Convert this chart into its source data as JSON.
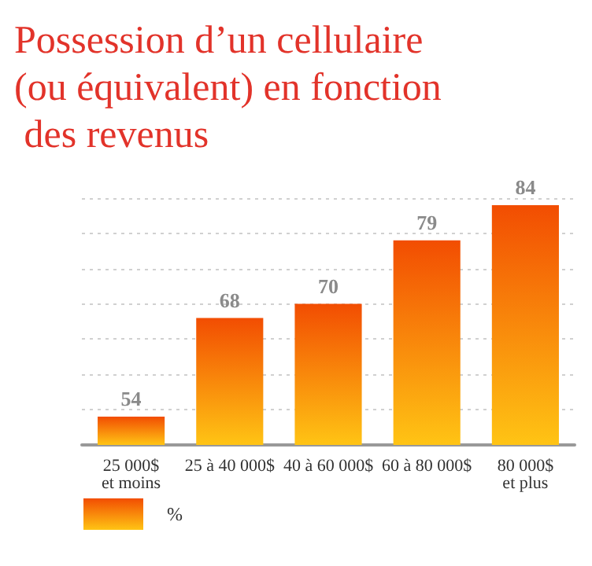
{
  "chart_data": {
    "type": "bar",
    "title": "Possession d’un cellulaire (ou équivalent) en fonction des revenus",
    "categories": [
      "25 000$\net moins",
      "25 à 40 000$",
      "40 à 60 000$",
      "60 à 80 000$",
      "80 000$\net plus"
    ],
    "series": [
      {
        "name": "%",
        "color": "#f24d02",
        "values": [
          54,
          68,
          70,
          79,
          84
        ]
      }
    ],
    "ylim": [
      50,
      85
    ],
    "yticks": [
      {
        "value": 50,
        "label": null
      },
      {
        "value": 55,
        "label": null
      },
      {
        "value": 60,
        "label": null
      },
      {
        "value": 65,
        "label": null
      },
      {
        "value": 70,
        "label": null
      },
      {
        "value": 75,
        "label": null
      },
      {
        "value": 80,
        "label": null
      },
      {
        "value": 85,
        "label": null
      }
    ],
    "tick_labels": "x",
    "grid": "y",
    "data_labels": true,
    "legend": "bottom left"
  }
}
